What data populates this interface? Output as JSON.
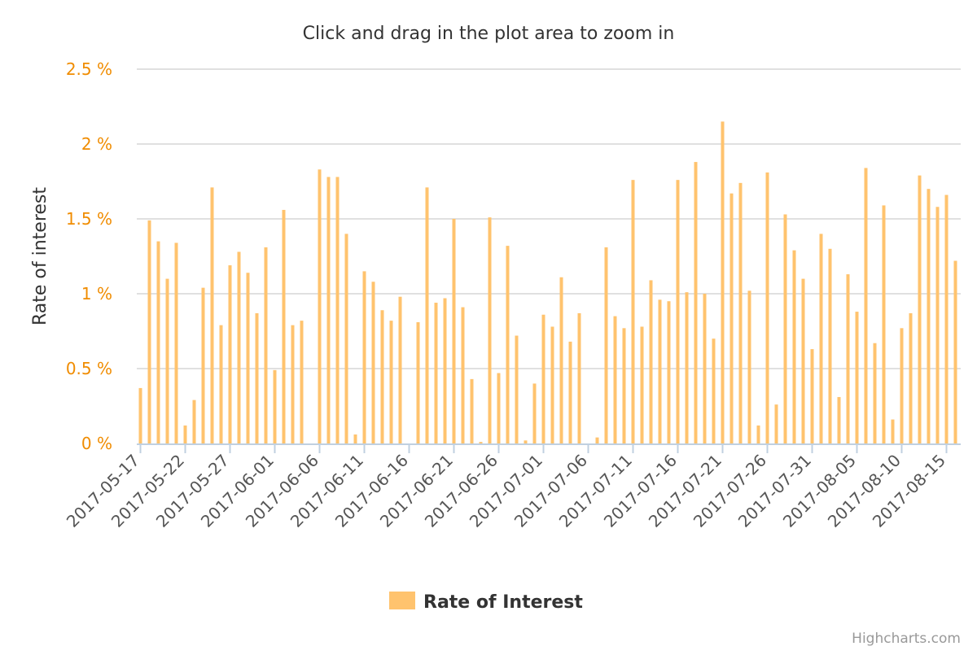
{
  "chart_data": {
    "type": "bar",
    "title": "Click and drag in the plot area to zoom in",
    "ylabel": "Rate of interest",
    "xlabel": "",
    "ylim": [
      0,
      2.5
    ],
    "y_ticks": [
      {
        "value": 0,
        "label": "0 %"
      },
      {
        "value": 0.5,
        "label": "0.5 %"
      },
      {
        "value": 1,
        "label": "1 %"
      },
      {
        "value": 1.5,
        "label": "1.5 %"
      },
      {
        "value": 2,
        "label": "2 %"
      },
      {
        "value": 2.5,
        "label": "2.5 %"
      }
    ],
    "grid": true,
    "legend_position": "bottom-center",
    "color": "#ffc36e",
    "y_tick_color": "#f08c00",
    "start_date": "2017-05-17",
    "x_tick_labels": [
      "2017-05-17",
      "2017-05-22",
      "2017-05-27",
      "2017-06-01",
      "2017-06-06",
      "2017-06-11",
      "2017-06-16",
      "2017-06-21",
      "2017-06-26",
      "2017-07-01",
      "2017-07-06",
      "2017-07-11",
      "2017-07-16",
      "2017-07-21",
      "2017-07-26",
      "2017-07-31",
      "2017-08-05",
      "2017-08-10",
      "2017-08-15"
    ],
    "series": [
      {
        "name": "Rate of Interest",
        "values": [
          0.37,
          1.49,
          1.35,
          1.1,
          1.34,
          0.12,
          0.29,
          1.04,
          1.71,
          0.79,
          1.19,
          1.28,
          1.14,
          0.87,
          1.31,
          0.49,
          1.56,
          0.79,
          0.82,
          0.0,
          1.83,
          1.78,
          1.78,
          1.4,
          0.06,
          1.15,
          1.08,
          0.89,
          0.82,
          0.98,
          0.0,
          0.81,
          1.71,
          0.94,
          0.97,
          1.5,
          0.91,
          0.43,
          0.01,
          1.51,
          0.47,
          1.32,
          0.72,
          0.02,
          0.4,
          0.86,
          0.78,
          1.11,
          0.68,
          0.87,
          0.0,
          0.04,
          1.31,
          0.85,
          0.77,
          1.76,
          0.78,
          1.09,
          0.96,
          0.95,
          1.76,
          1.01,
          1.88,
          1.0,
          0.7,
          2.15,
          1.67,
          1.74,
          1.02,
          0.12,
          1.81,
          0.26,
          1.53,
          1.29,
          1.1,
          0.63,
          1.4,
          1.3,
          0.31,
          1.13,
          0.88,
          1.84,
          0.67,
          1.59,
          0.16,
          0.77,
          0.87,
          1.79,
          1.7,
          1.58,
          1.66,
          1.22
        ]
      }
    ]
  },
  "credits": "Highcharts.com"
}
